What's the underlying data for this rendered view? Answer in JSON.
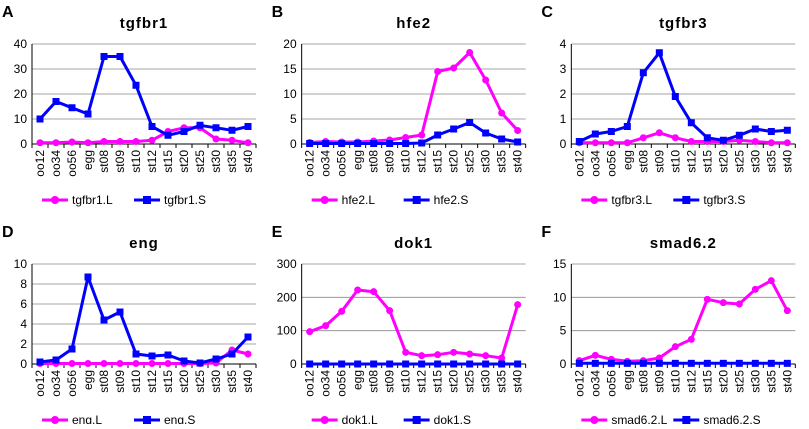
{
  "colors": {
    "series_l": "#ff00ff",
    "series_s": "#0000ff",
    "grid": "#888888",
    "axis": "#000000"
  },
  "chart_data": [
    {
      "panel_label": "A",
      "title": "tgfbr1",
      "type": "line",
      "categories": [
        "oo12",
        "oo34",
        "oo56",
        "egg",
        "st08",
        "st09",
        "st10",
        "st12",
        "st15",
        "st20",
        "st25",
        "st30",
        "st35",
        "st40"
      ],
      "ylim": [
        0,
        40
      ],
      "yticks": [
        0,
        10,
        20,
        30,
        40
      ],
      "grid": true,
      "legend": "bottom",
      "series": [
        {
          "name": "tgfbr1.L",
          "color": "#ff00ff",
          "marker": "circle",
          "values": [
            0.5,
            0.5,
            0.8,
            0.5,
            1,
            1,
            1,
            1.5,
            5,
            6.5,
            6.5,
            2,
            1.5,
            0.5
          ]
        },
        {
          "name": "tgfbr1.S",
          "color": "#0000ff",
          "marker": "square",
          "values": [
            10,
            17,
            14.5,
            12,
            35,
            35,
            23.5,
            7,
            3.5,
            5,
            7.5,
            6.5,
            5.5,
            7
          ]
        }
      ]
    },
    {
      "panel_label": "B",
      "title": "hfe2",
      "type": "line",
      "categories": [
        "oo12",
        "oo34",
        "oo56",
        "egg",
        "st08",
        "st09",
        "st10",
        "st12",
        "st15",
        "st20",
        "st25",
        "st30",
        "st35",
        "st40"
      ],
      "ylim": [
        0,
        20
      ],
      "yticks": [
        0,
        5,
        10,
        15,
        20
      ],
      "grid": true,
      "legend": "bottom",
      "series": [
        {
          "name": "hfe2.L",
          "color": "#ff00ff",
          "marker": "circle",
          "values": [
            0.3,
            0.5,
            0.4,
            0.4,
            0.6,
            0.8,
            1.3,
            1.8,
            14.5,
            15.2,
            18.3,
            12.8,
            6.2,
            2.7
          ]
        },
        {
          "name": "hfe2.S",
          "color": "#0000ff",
          "marker": "square",
          "values": [
            0.1,
            0.1,
            0.1,
            0.1,
            0.1,
            0.1,
            0.1,
            0.2,
            1.8,
            3,
            4.3,
            2.2,
            1,
            0.4
          ]
        }
      ]
    },
    {
      "panel_label": "C",
      "title": "tgfbr3",
      "type": "line",
      "categories": [
        "oo12",
        "oo34",
        "oo56",
        "egg",
        "st08",
        "st09",
        "st10",
        "st12",
        "st15",
        "st20",
        "st25",
        "st30",
        "st35",
        "st40"
      ],
      "ylim": [
        0,
        4
      ],
      "yticks": [
        0,
        1,
        2,
        3,
        4
      ],
      "grid": true,
      "legend": "bottom",
      "series": [
        {
          "name": "tgfbr3.L",
          "color": "#ff00ff",
          "marker": "circle",
          "values": [
            0.05,
            0.05,
            0.05,
            0.05,
            0.25,
            0.45,
            0.25,
            0.1,
            0.1,
            0.1,
            0.15,
            0.1,
            0.05,
            0.05
          ]
        },
        {
          "name": "tgfbr3.S",
          "color": "#0000ff",
          "marker": "square",
          "values": [
            0.1,
            0.4,
            0.5,
            0.7,
            2.85,
            3.65,
            1.9,
            0.85,
            0.25,
            0.15,
            0.35,
            0.6,
            0.5,
            0.55
          ]
        }
      ]
    },
    {
      "panel_label": "D",
      "title": "eng",
      "type": "line",
      "categories": [
        "oo12",
        "oo34",
        "oo56",
        "egg",
        "st08",
        "st09",
        "st10",
        "st12",
        "st15",
        "st20",
        "st25",
        "st30",
        "st35",
        "st40"
      ],
      "ylim": [
        0,
        10
      ],
      "yticks": [
        0,
        2,
        4,
        6,
        8,
        10
      ],
      "grid": true,
      "legend": "bottom",
      "series": [
        {
          "name": "eng.L",
          "color": "#ff00ff",
          "marker": "circle",
          "values": [
            0.05,
            0.05,
            0.05,
            0.05,
            0.05,
            0.05,
            0.05,
            0.05,
            0.05,
            0.05,
            0.05,
            0.1,
            1.4,
            1
          ]
        },
        {
          "name": "eng.S",
          "color": "#0000ff",
          "marker": "square",
          "values": [
            0.2,
            0.4,
            1.5,
            8.7,
            4.4,
            5.2,
            1,
            0.8,
            0.9,
            0.3,
            0.1,
            0.5,
            1,
            2.7
          ]
        }
      ]
    },
    {
      "panel_label": "E",
      "title": "dok1",
      "type": "line",
      "categories": [
        "oo12",
        "oo34",
        "oo56",
        "egg",
        "st08",
        "st09",
        "st10",
        "st12",
        "st15",
        "st20",
        "st25",
        "st30",
        "st35",
        "st40"
      ],
      "ylim": [
        0,
        300
      ],
      "yticks": [
        0,
        100,
        200,
        300
      ],
      "grid": true,
      "legend": "bottom",
      "series": [
        {
          "name": "dok1.L",
          "color": "#ff00ff",
          "marker": "circle",
          "values": [
            97,
            115,
            158,
            222,
            217,
            160,
            35,
            25,
            28,
            35,
            30,
            25,
            18,
            178
          ]
        },
        {
          "name": "dok1.S",
          "color": "#0000ff",
          "marker": "square",
          "values": [
            0,
            0,
            0,
            0,
            0,
            0,
            0,
            0,
            0,
            0,
            0,
            0,
            0,
            0
          ]
        }
      ]
    },
    {
      "panel_label": "F",
      "title": "smad6.2",
      "type": "line",
      "categories": [
        "oo12",
        "oo34",
        "oo56",
        "egg",
        "st08",
        "st09",
        "st10",
        "st12",
        "st15",
        "st20",
        "st25",
        "st30",
        "st35",
        "st40"
      ],
      "ylim": [
        0,
        15
      ],
      "yticks": [
        0,
        5,
        10,
        15
      ],
      "grid": true,
      "legend": "bottom",
      "series": [
        {
          "name": "smad6.2.L",
          "color": "#ff00ff",
          "marker": "circle",
          "values": [
            0.5,
            1.3,
            0.7,
            0.4,
            0.5,
            0.9,
            2.6,
            3.7,
            9.7,
            9.2,
            9,
            11.2,
            12.5,
            8
          ]
        },
        {
          "name": "smad6.2.S",
          "color": "#0000ff",
          "marker": "square",
          "values": [
            0.1,
            0.1,
            0.1,
            0.1,
            0.1,
            0.1,
            0.1,
            0.1,
            0.1,
            0.1,
            0.1,
            0.1,
            0.1,
            0.1
          ]
        }
      ]
    }
  ]
}
